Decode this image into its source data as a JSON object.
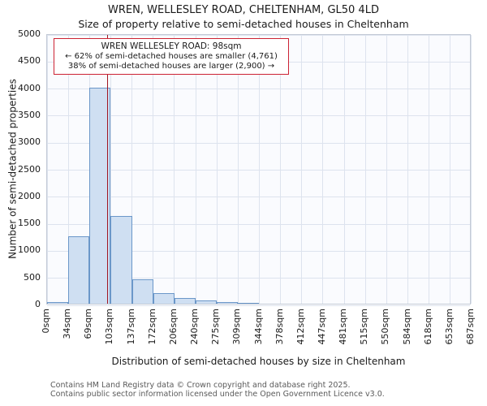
{
  "title": "WREN, WELLESLEY ROAD, CHELTENHAM, GL50 4LD",
  "subtitle": "Size of property relative to semi-detached houses in Cheltenham",
  "annotation": {
    "line1": "WREN WELLESLEY ROAD: 98sqm",
    "line2": "← 62% of semi-detached houses are smaller (4,761)",
    "line3": "38% of semi-detached houses are larger (2,900) →"
  },
  "footer": {
    "line1": "Contains HM Land Registry data © Crown copyright and database right 2025.",
    "line2": "Contains public sector information licensed under the Open Government Licence v3.0."
  },
  "chart_data": {
    "type": "bar",
    "title": "WREN, WELLESLEY ROAD, CHELTENHAM, GL50 4LD",
    "subtitle": "Size of property relative to semi-detached houses in Cheltenham",
    "xlabel": "Distribution of semi-detached houses by size in Cheltenham",
    "ylabel": "Number of semi-detached properties",
    "categories": [
      "0sqm",
      "34sqm",
      "69sqm",
      "103sqm",
      "137sqm",
      "172sqm",
      "206sqm",
      "240sqm",
      "275sqm",
      "309sqm",
      "344sqm",
      "378sqm",
      "412sqm",
      "447sqm",
      "481sqm",
      "515sqm",
      "550sqm",
      "584sqm",
      "618sqm",
      "653sqm",
      "687sqm"
    ],
    "values": [
      30,
      1250,
      4000,
      1620,
      450,
      190,
      110,
      55,
      35,
      20,
      0,
      0,
      0,
      0,
      0,
      0,
      0,
      0,
      0,
      0
    ],
    "ylim": [
      0,
      5000
    ],
    "ytick_step": 500,
    "x_max_sqm": 687,
    "marker_value_sqm": 98,
    "marker_label": "98sqm",
    "smaller_pct": 62,
    "smaller_count": "4,761",
    "larger_pct": 38,
    "larger_count": "2,900",
    "grid": true,
    "legend": "none",
    "colors": {
      "bar_fill": "#cfdff2",
      "bar_border": "#6b97c9",
      "marker_line": "#a01622",
      "annotation_border": "#cc2233",
      "grid": "#dde3ee",
      "plot_bg": "#fafbfe",
      "text": "#1a1a1a",
      "footer_text": "#5a5a5a"
    }
  }
}
